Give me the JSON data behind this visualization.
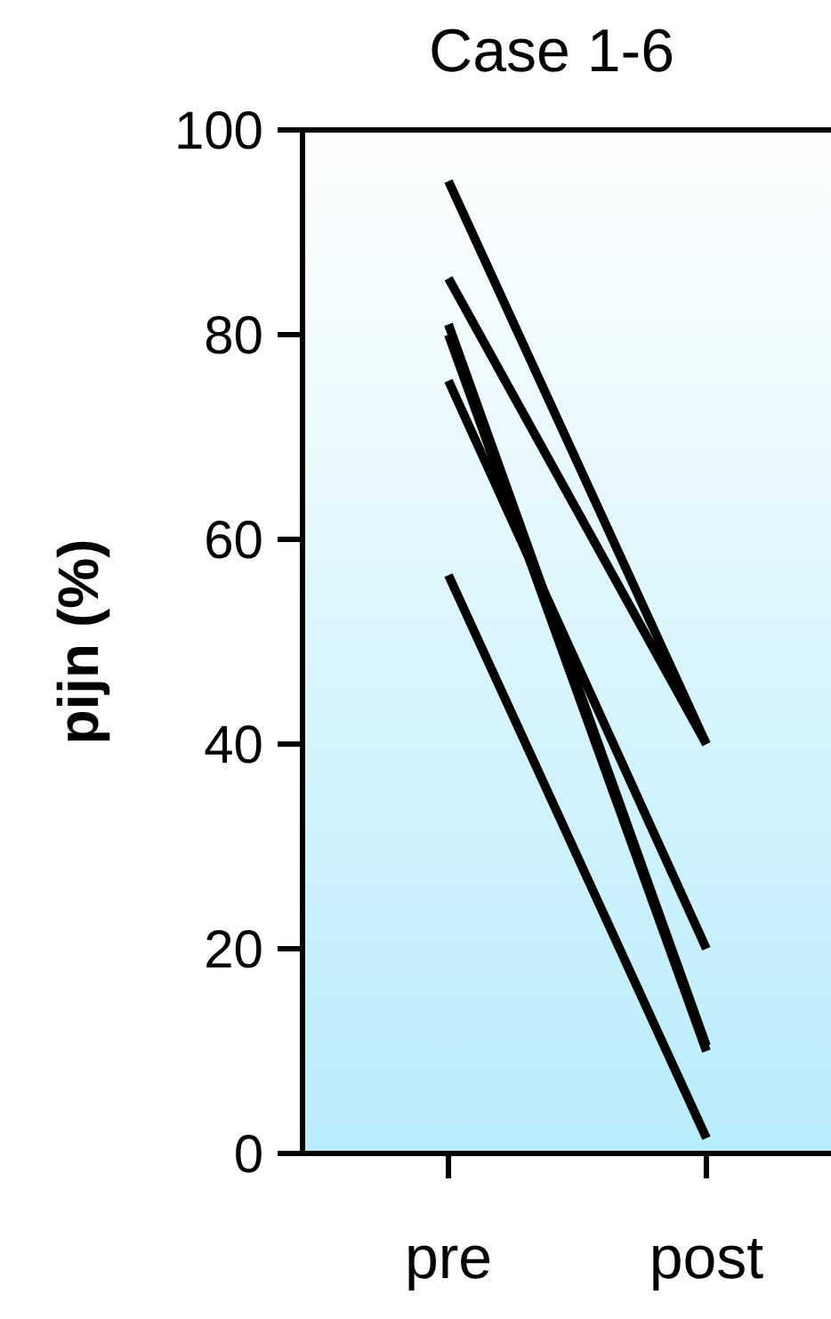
{
  "chart_data": {
    "type": "line",
    "title": "Case 1-6",
    "ylabel": "pijn (%)",
    "categories": [
      "pre",
      "post"
    ],
    "ylim": [
      0,
      100
    ],
    "yticks": [
      0,
      20,
      40,
      60,
      80,
      100
    ],
    "marker": "none",
    "line_style": "solid",
    "series": [
      {
        "color": "#000000",
        "values": [
          95,
          40
        ]
      },
      {
        "color": "#000000",
        "values": [
          85.5,
          40
        ]
      },
      {
        "color": "#000000",
        "values": [
          81,
          10.5
        ]
      },
      {
        "color": "#000000",
        "values": [
          75.5,
          20
        ]
      },
      {
        "color": "#000000",
        "values": [
          56.5,
          1.5
        ]
      },
      {
        "color": "#000000",
        "values": [
          80,
          10
        ]
      }
    ]
  }
}
